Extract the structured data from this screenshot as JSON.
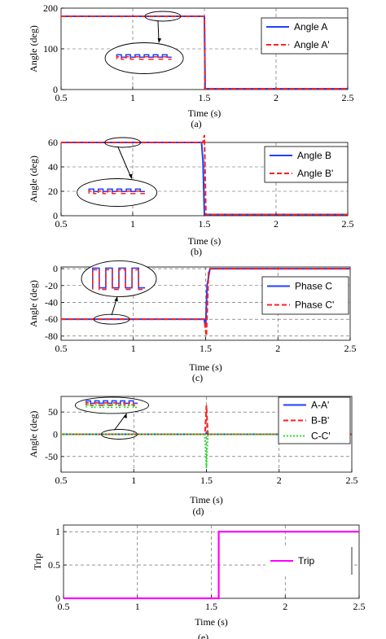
{
  "chart_data": [
    {
      "id": "a",
      "type": "line",
      "caption": "(a)",
      "xlabel": "Time (s)",
      "ylabel": "Angle (deg)",
      "xlim": [
        0.5,
        2.5
      ],
      "ylim": [
        0,
        200
      ],
      "xticks": [
        0.5,
        1,
        1.5,
        2,
        2.5
      ],
      "yticks": [
        0,
        100,
        200
      ],
      "grid": true,
      "legend_position": "top-right",
      "series": [
        {
          "name": "Angle A",
          "color": "#2040ff",
          "dash": "solid",
          "x": [
            0.5,
            1.5,
            1.505,
            2.5
          ],
          "y": [
            180,
            180,
            2,
            2
          ]
        },
        {
          "name": "Angle A'",
          "color": "#ff2020",
          "dash": "dashed",
          "x": [
            0.5,
            1.5,
            1.505,
            2.5
          ],
          "y": [
            180,
            180,
            2,
            2
          ]
        }
      ],
      "zoom": {
        "source": [
          1.21,
          180
        ],
        "ellipse_center": [
          1.08,
          77
        ]
      }
    },
    {
      "id": "b",
      "type": "line",
      "caption": "(b)",
      "xlabel": "Time (s)",
      "ylabel": "Angle (deg)",
      "xlim": [
        0.5,
        2.5
      ],
      "ylim": [
        0,
        60
      ],
      "xticks": [
        0.5,
        1,
        1.5,
        2,
        2.5
      ],
      "yticks": [
        0,
        20,
        40,
        60
      ],
      "grid": true,
      "legend_position": "top-right",
      "series": [
        {
          "name": "Angle B",
          "color": "#2040ff",
          "dash": "solid",
          "x": [
            0.5,
            1.48,
            1.49,
            1.5,
            1.51,
            2.5
          ],
          "y": [
            60,
            60,
            45,
            1,
            1,
            1
          ]
        },
        {
          "name": "Angle B'",
          "color": "#ff2020",
          "dash": "dashed",
          "x": [
            0.5,
            1.49,
            1.5,
            1.51,
            1.52,
            2.5
          ],
          "y": [
            60,
            60,
            66,
            1,
            1,
            1
          ]
        }
      ],
      "zoom": {
        "source": [
          0.93,
          60
        ],
        "ellipse_center": [
          0.89,
          19
        ]
      }
    },
    {
      "id": "c",
      "type": "line",
      "caption": "(c)",
      "xlabel": "Time (s)",
      "ylabel": "Angle (deg)",
      "xlim": [
        0.5,
        2.5
      ],
      "ylim": [
        -85,
        2
      ],
      "xticks": [
        0.5,
        1,
        1.5,
        2,
        2.5
      ],
      "yticks": [
        0,
        -20,
        -40,
        -60,
        -80
      ],
      "grid": true,
      "legend_position": "top-right",
      "series": [
        {
          "name": "Phase C",
          "color": "#2040ff",
          "dash": "solid",
          "x": [
            0.5,
            1.49,
            1.5,
            1.51,
            1.53,
            2.5
          ],
          "y": [
            -60,
            -60,
            -70,
            -20,
            0,
            0
          ]
        },
        {
          "name": "Phase C'",
          "color": "#ff2020",
          "dash": "dashed",
          "x": [
            0.5,
            1.49,
            1.505,
            1.52,
            1.53,
            2.5
          ],
          "y": [
            -60,
            -60,
            -80,
            -5,
            0,
            0
          ]
        }
      ],
      "zoom": {
        "source": [
          0.85,
          -60
        ],
        "ellipse_center": [
          0.9,
          -12
        ]
      }
    },
    {
      "id": "d",
      "type": "line",
      "caption": "(d)",
      "xlabel": "Time (s)",
      "ylabel": "Angle (deg)",
      "xlim": [
        0.5,
        2.5
      ],
      "ylim": [
        -85,
        85
      ],
      "xticks": [
        0.5,
        1,
        1.5,
        2,
        2.5
      ],
      "yticks": [
        50,
        0,
        -50
      ],
      "grid": true,
      "legend_position": "top-right",
      "series": [
        {
          "name": "A-A'",
          "color": "#2040ff",
          "dash": "solid",
          "x": [
            0.5,
            1.49,
            1.5,
            1.51,
            2.5
          ],
          "y": [
            0,
            0,
            3,
            0,
            0
          ]
        },
        {
          "name": "B-B'",
          "color": "#ff2020",
          "dash": "dashed",
          "x": [
            0.5,
            1.49,
            1.5,
            1.505,
            1.51,
            2.5
          ],
          "y": [
            0,
            0,
            65,
            30,
            0,
            0
          ]
        },
        {
          "name": "C-C'",
          "color": "#22dd22",
          "dash": "dotted",
          "x": [
            0.5,
            1.49,
            1.5,
            1.505,
            1.51,
            2.5
          ],
          "y": [
            0,
            0,
            -75,
            -30,
            0,
            0
          ]
        }
      ],
      "zoom": {
        "source": [
          0.9,
          0
        ],
        "ellipse_center": [
          0.85,
          65
        ]
      }
    },
    {
      "id": "e",
      "type": "line",
      "caption": "(e)",
      "xlabel": "Time (s)",
      "ylabel": "Trip",
      "xlim": [
        0.5,
        2.5
      ],
      "ylim": [
        0,
        1.1
      ],
      "xticks": [
        0.5,
        1,
        1.5,
        2,
        2.5
      ],
      "yticks": [
        0,
        0.5,
        1
      ],
      "grid": true,
      "legend_position": "right",
      "series": [
        {
          "name": "Trip",
          "color": "#ff00ff",
          "dash": "solid",
          "x": [
            0.5,
            1.55,
            1.55,
            2.5
          ],
          "y": [
            0,
            0,
            1,
            1
          ]
        }
      ]
    }
  ]
}
